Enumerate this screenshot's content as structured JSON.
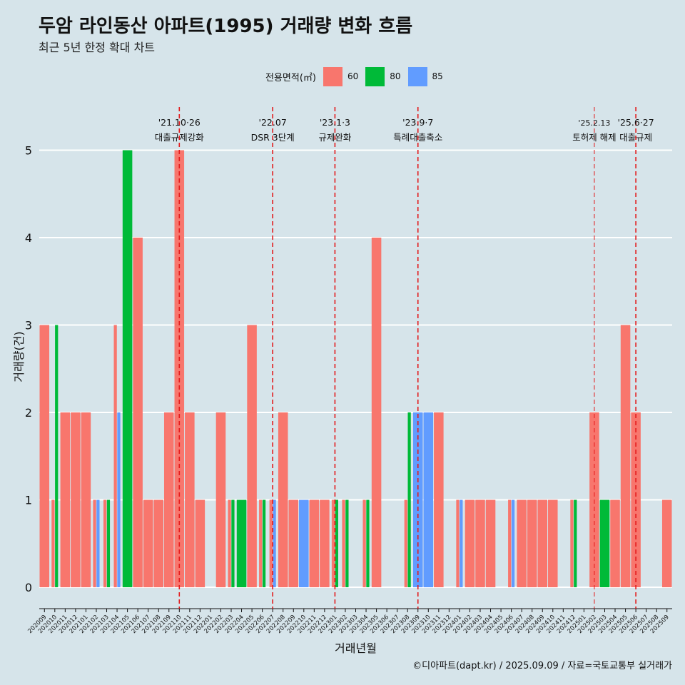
{
  "title": "두암 라인동산 아파트(1995) 거래량 변화 흐름",
  "subtitle": "최근 5년 한정 확대 차트",
  "caption": "©디아파트(dapt.kr) / 2025.09.09 / 자료=국토교통부 실거래가",
  "legend": {
    "title": "전용면적(㎡)",
    "items": [
      {
        "label": "60",
        "color": "#f8766d"
      },
      {
        "label": "80",
        "color": "#00ba38"
      },
      {
        "label": "85",
        "color": "#619cff"
      }
    ]
  },
  "chart_data": {
    "type": "bar",
    "xlabel": "거래년월",
    "ylabel": "거래량(건)",
    "ylim": [
      0,
      5
    ],
    "yticks": [
      0,
      1,
      2,
      3,
      4,
      5
    ],
    "grid": true,
    "legend_position": "top",
    "categories": [
      "202009",
      "202010",
      "202011",
      "202012",
      "202101",
      "202102",
      "202103",
      "202104",
      "202105",
      "202106",
      "202107",
      "202108",
      "202109",
      "202110",
      "202111",
      "202112",
      "202201",
      "202202",
      "202203",
      "202204",
      "202205",
      "202206",
      "202207",
      "202208",
      "202209",
      "202210",
      "202211",
      "202212",
      "202301",
      "202302",
      "202303",
      "202304",
      "202305",
      "202306",
      "202307",
      "202308",
      "202309",
      "202310",
      "202311",
      "202312",
      "202401",
      "202402",
      "202403",
      "202404",
      "202405",
      "202406",
      "202407",
      "202408",
      "202409",
      "202410",
      "202411",
      "202412",
      "202501",
      "202502",
      "202503",
      "202504",
      "202505",
      "202506",
      "202507",
      "202508",
      "202509"
    ],
    "series": [
      {
        "name": "60",
        "color": "#f8766d",
        "values": [
          3,
          1,
          2,
          2,
          2,
          1,
          1,
          3,
          0,
          4,
          1,
          1,
          2,
          5,
          2,
          1,
          0,
          2,
          1,
          0,
          3,
          1,
          1,
          2,
          1,
          0,
          1,
          1,
          1,
          1,
          0,
          1,
          4,
          0,
          0,
          1,
          0,
          0,
          2,
          0,
          1,
          1,
          1,
          1,
          0,
          1,
          1,
          1,
          1,
          1,
          0,
          1,
          0,
          2,
          0,
          1,
          3,
          2,
          0,
          0,
          1
        ]
      },
      {
        "name": "80",
        "color": "#00ba38",
        "values": [
          0,
          3,
          0,
          0,
          0,
          0,
          1,
          0,
          5,
          0,
          0,
          0,
          0,
          0,
          0,
          0,
          0,
          0,
          1,
          1,
          0,
          1,
          0,
          0,
          0,
          0,
          0,
          0,
          1,
          1,
          0,
          1,
          0,
          0,
          0,
          2,
          0,
          0,
          0,
          0,
          0,
          0,
          0,
          0,
          0,
          0,
          0,
          0,
          0,
          0,
          0,
          1,
          0,
          0,
          1,
          0,
          0,
          0,
          0,
          0,
          0
        ]
      },
      {
        "name": "85",
        "color": "#619cff",
        "values": [
          0,
          0,
          0,
          0,
          0,
          1,
          0,
          2,
          0,
          0,
          0,
          0,
          0,
          0,
          0,
          0,
          0,
          0,
          0,
          0,
          0,
          0,
          1,
          0,
          0,
          1,
          0,
          0,
          0,
          0,
          0,
          0,
          0,
          0,
          0,
          0,
          2,
          2,
          0,
          0,
          1,
          0,
          0,
          0,
          0,
          1,
          0,
          0,
          0,
          0,
          0,
          0,
          0,
          0,
          0,
          0,
          0,
          0,
          0,
          0,
          0
        ]
      }
    ],
    "annotations": [
      {
        "x": "202110",
        "date": "'21.10·26",
        "text": "대출규제강화"
      },
      {
        "x": "202207",
        "date": "'22.07",
        "text": "DSR 3단계"
      },
      {
        "x": "202301",
        "date": "'23.1·3",
        "text": "규제완화"
      },
      {
        "x": "202309",
        "date": "'23.9·7",
        "text": "특례대출축소"
      },
      {
        "x": "202502",
        "date": "'25.2.13",
        "text": "토허제 해제"
      },
      {
        "x": "202506",
        "date": "'25.6·27",
        "text": "대출규제"
      }
    ]
  }
}
